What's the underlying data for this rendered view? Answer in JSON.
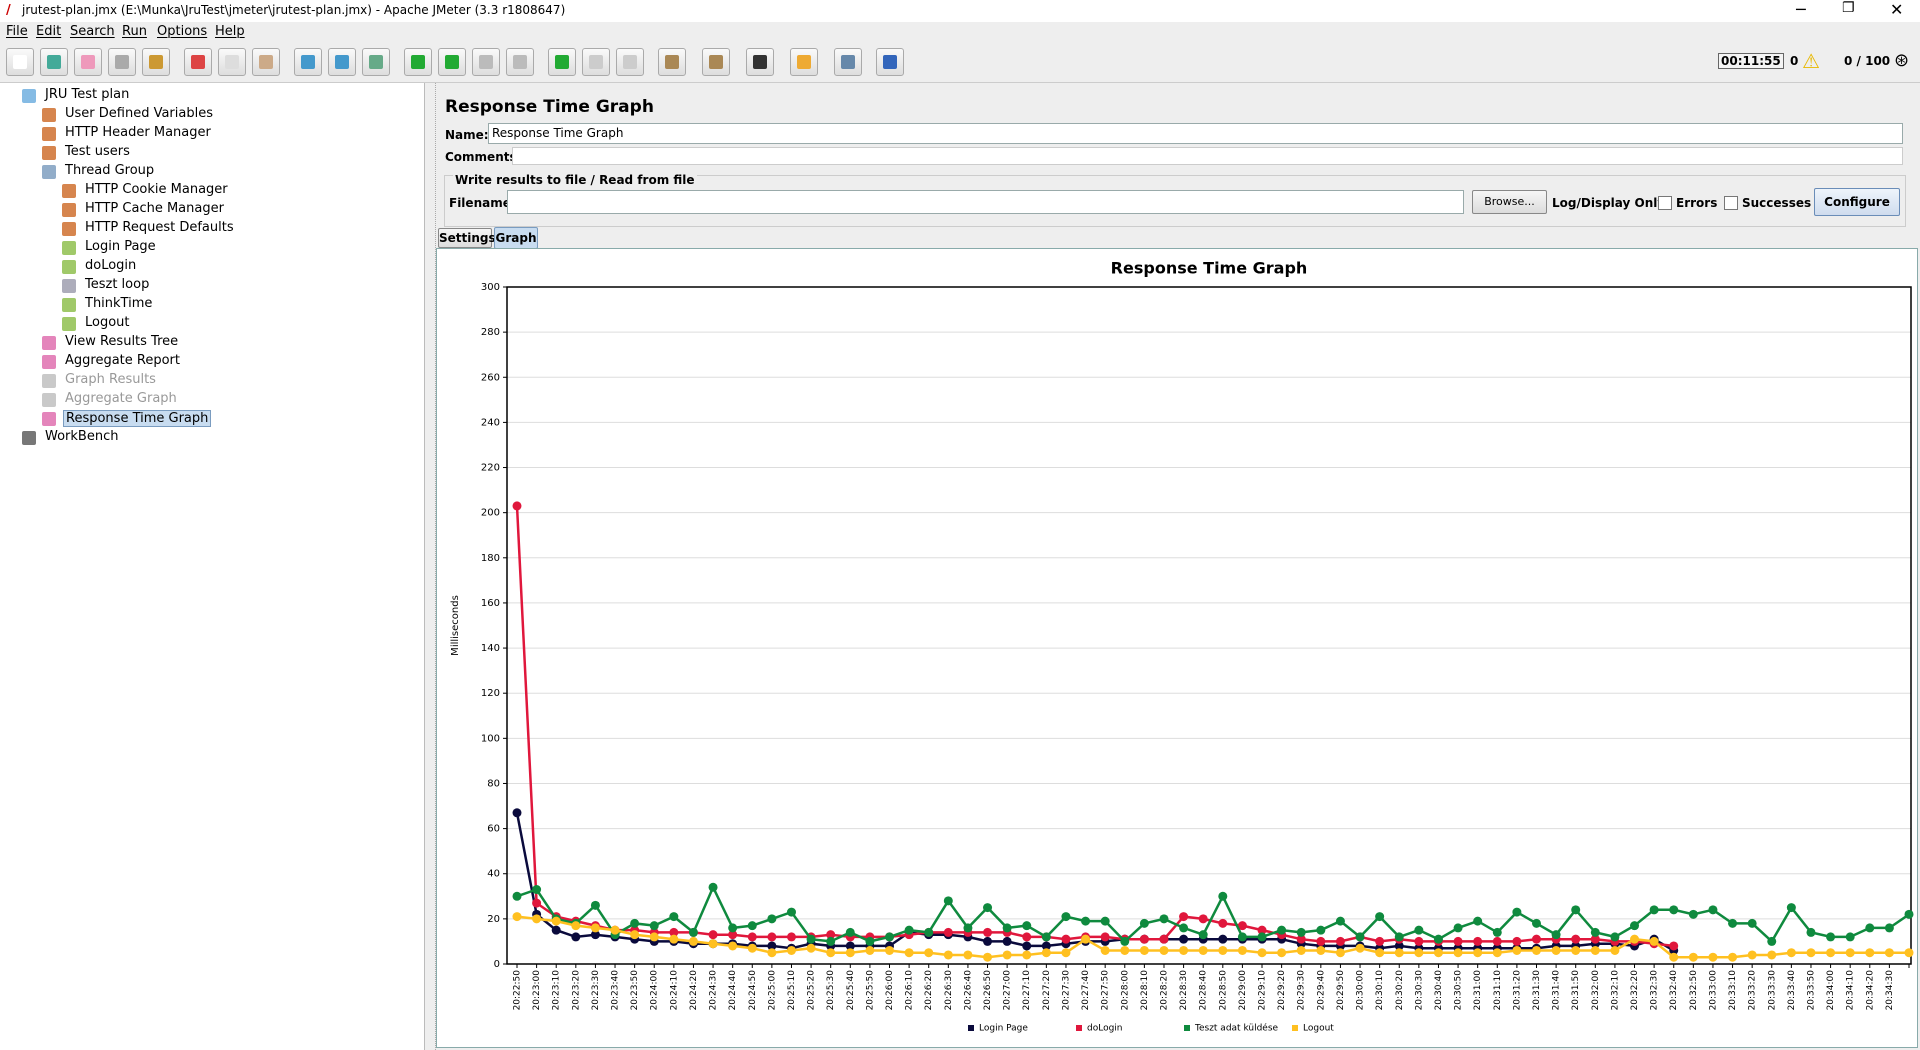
{
  "window": {
    "title": "jrutest-plan.jmx (E:\\Munka\\JruTest\\jmeter\\jrutest-plan.jmx) - Apache JMeter (3.3 r1808647)"
  },
  "menu": [
    "File",
    "Edit",
    "Search",
    "Run",
    "Options",
    "Help"
  ],
  "status": {
    "timer": "00:11:55",
    "errors": "0",
    "threads": "0 / 100"
  },
  "tree": {
    "nodes": [
      "JRU Test plan",
      "User Defined Variables",
      "HTTP Header Manager",
      "Test users",
      "Thread Group",
      "HTTP Cookie Manager",
      "HTTP Cache Manager",
      "HTTP Request Defaults",
      "Login Page",
      "doLogin",
      "Teszt loop",
      "ThinkTime",
      "Logout",
      "View Results Tree",
      "Aggregate Report",
      "Graph Results",
      "Aggregate Graph",
      "Response Time Graph",
      "WorkBench"
    ]
  },
  "panel": {
    "heading": "Response Time Graph",
    "name_label": "Name:",
    "name_value": "Response Time Graph",
    "comments_label": "Comments:",
    "file_group": "Write results to file / Read from file",
    "filename_label": "Filename",
    "browse": "Browse...",
    "log_label": "Log/Display Only:",
    "errors": "Errors",
    "successes": "Successes",
    "configure": "Configure",
    "tabs": [
      "Settings",
      "Graph"
    ]
  },
  "chart_data": {
    "type": "line",
    "title": "Response Time Graph",
    "y_label": "Milliseconds",
    "categories": [
      "20:22:50",
      "20:23:00",
      "20:23:10",
      "20:23:20",
      "20:23:30",
      "20:23:40",
      "20:23:50",
      "20:24:00",
      "20:24:10",
      "20:24:20",
      "20:24:30",
      "20:24:40",
      "20:24:50",
      "20:25:00",
      "20:25:10",
      "20:25:20",
      "20:25:30",
      "20:25:40",
      "20:25:50",
      "20:26:00",
      "20:26:10",
      "20:26:20",
      "20:26:30",
      "20:26:40",
      "20:26:50",
      "20:27:00",
      "20:27:10",
      "20:27:20",
      "20:27:30",
      "20:27:40",
      "20:27:50",
      "20:28:00",
      "20:28:10",
      "20:28:20",
      "20:28:30",
      "20:28:40",
      "20:28:50",
      "20:29:00",
      "20:29:10",
      "20:29:20",
      "20:29:30",
      "20:29:40",
      "20:29:50",
      "20:30:00",
      "20:30:10",
      "20:30:20",
      "20:30:30",
      "20:30:40",
      "20:30:50",
      "20:31:00",
      "20:31:10",
      "20:31:20",
      "20:31:30",
      "20:31:40",
      "20:31:50",
      "20:32:00",
      "20:32:10",
      "20:32:20",
      "20:32:30",
      "20:32:40",
      "20:32:50",
      "20:33:00",
      "20:33:10",
      "20:33:20",
      "20:33:30",
      "20:33:40",
      "20:33:50",
      "20:34:00",
      "20:34:10",
      "20:34:20",
      "20:34:30",
      null
    ],
    "ylim": [
      0,
      300
    ],
    "yticks": [
      0,
      20,
      40,
      60,
      80,
      100,
      120,
      140,
      160,
      180,
      200,
      220,
      240,
      260,
      280,
      300
    ],
    "grid": true,
    "legend": "bottom",
    "series": [
      {
        "name": "Login Page",
        "color": "#0a0a3c",
        "values": [
          67,
          22,
          15,
          12,
          13,
          12,
          11,
          10,
          10,
          9,
          9,
          9,
          8,
          8,
          7,
          9,
          8,
          8,
          8,
          8,
          14,
          13,
          13,
          12,
          10,
          10,
          8,
          8,
          9,
          10,
          10,
          11,
          11,
          11,
          11,
          11,
          11,
          11,
          11,
          11,
          9,
          8,
          8,
          8,
          7,
          8,
          7,
          7,
          7,
          7,
          7,
          7,
          7,
          8,
          8,
          9,
          9,
          8,
          11,
          6,
          null,
          null,
          null,
          null,
          null,
          null,
          null,
          null,
          null,
          null,
          null,
          null
        ]
      },
      {
        "name": "doLogin",
        "color": "#e0173c",
        "values": [
          203,
          27,
          21,
          19,
          17,
          15,
          15,
          14,
          14,
          14,
          13,
          13,
          12,
          12,
          12,
          12,
          13,
          12,
          12,
          12,
          13,
          14,
          14,
          14,
          14,
          14,
          12,
          12,
          11,
          12,
          12,
          11,
          11,
          11,
          21,
          20,
          18,
          17,
          15,
          13,
          11,
          10,
          10,
          12,
          10,
          11,
          10,
          10,
          10,
          10,
          10,
          10,
          11,
          11,
          11,
          11,
          10,
          10,
          9,
          8,
          null,
          null,
          null,
          null,
          null,
          null,
          null,
          null,
          null,
          null,
          null,
          null
        ]
      },
      {
        "name": "Teszt adat küldése",
        "color": "#0f8a3e",
        "values": [
          30,
          33,
          20,
          18,
          26,
          13,
          18,
          17,
          21,
          14,
          34,
          16,
          17,
          20,
          23,
          11,
          10,
          14,
          10,
          12,
          15,
          14,
          28,
          16,
          25,
          16,
          17,
          12,
          21,
          19,
          19,
          10,
          18,
          20,
          16,
          13,
          30,
          12,
          12,
          15,
          14,
          15,
          19,
          12,
          21,
          12,
          15,
          11,
          16,
          19,
          14,
          23,
          18,
          13,
          24,
          14,
          12,
          17,
          24,
          24,
          22,
          24,
          18,
          18,
          10,
          25,
          14,
          12,
          12,
          16,
          16,
          22
        ]
      },
      {
        "name": "Logout",
        "color": "#ffc020",
        "values": [
          21,
          20,
          19,
          17,
          16,
          15,
          13,
          12,
          11,
          10,
          9,
          8,
          7,
          5,
          6,
          7,
          5,
          5,
          6,
          6,
          5,
          5,
          4,
          4,
          3,
          4,
          4,
          5,
          5,
          11,
          6,
          6,
          6,
          6,
          6,
          6,
          6,
          6,
          5,
          5,
          6,
          6,
          5,
          7,
          5,
          5,
          5,
          5,
          5,
          5,
          5,
          6,
          6,
          6,
          6,
          6,
          6,
          11,
          10,
          3,
          3,
          3,
          3,
          4,
          4,
          5,
          5,
          5,
          5,
          5,
          5,
          5
        ]
      }
    ]
  }
}
